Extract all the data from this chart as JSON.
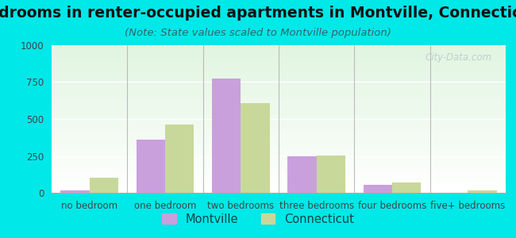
{
  "title": "Bedrooms in renter-occupied apartments in Montville, Connecticut",
  "subtitle": "(Note: State values scaled to Montville population)",
  "categories": [
    "no bedroom",
    "one bedroom",
    "two bedrooms",
    "three bedrooms",
    "four bedrooms",
    "five+ bedrooms"
  ],
  "montville_values": [
    15,
    360,
    775,
    245,
    55,
    0
  ],
  "connecticut_values": [
    100,
    460,
    610,
    255,
    70,
    15
  ],
  "montville_color": "#c9a0dc",
  "connecticut_color": "#c8d89a",
  "background_color": "#00e8e8",
  "ylim": [
    0,
    1000
  ],
  "yticks": [
    0,
    250,
    500,
    750,
    1000
  ],
  "bar_width": 0.38,
  "title_fontsize": 13.5,
  "subtitle_fontsize": 9.5,
  "tick_fontsize": 8.5,
  "legend_fontsize": 10.5,
  "watermark": "City-Data.com"
}
